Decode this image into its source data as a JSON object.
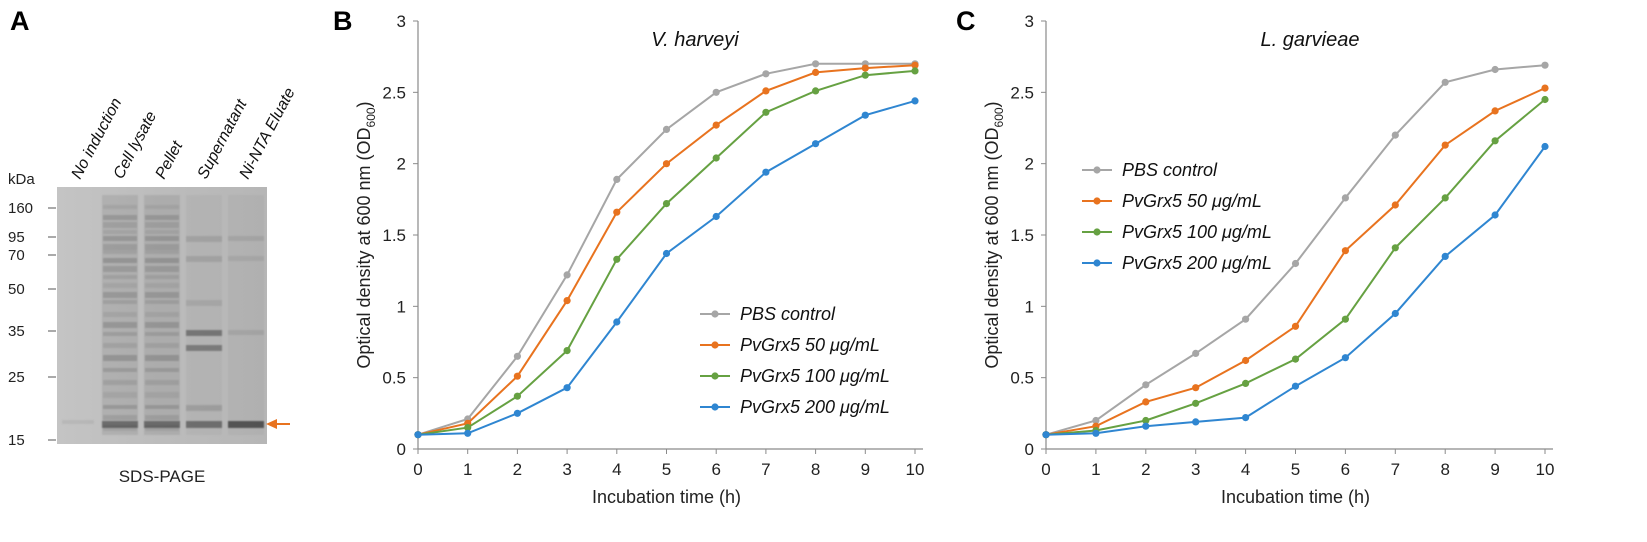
{
  "panel_a": {
    "letter": "A",
    "lanes": [
      "No induction",
      "Cell lysate",
      "Pellet",
      "Supernatant",
      "Ni-NTA Eluate"
    ],
    "unit_label": "kDa",
    "markers": [
      "160",
      "95",
      "70",
      "50",
      "35",
      "25",
      "15"
    ],
    "caption": "SDS-PAGE",
    "arrow_color": "#e8731f"
  },
  "chart_data": [
    {
      "panel": "B",
      "type": "line",
      "title": "V. harveyi",
      "xlabel": "Incubation time (h)",
      "ylabel_prefix": "Optical density at 600 nm (OD",
      "ylabel_sub": "600",
      "ylabel_suffix": ")",
      "x": [
        0,
        1,
        2,
        3,
        4,
        5,
        6,
        7,
        8,
        9,
        10
      ],
      "xlim": [
        0,
        10
      ],
      "ylim": [
        0,
        3
      ],
      "x_ticks": [
        "0",
        "1",
        "2",
        "3",
        "4",
        "5",
        "6",
        "7",
        "8",
        "9",
        "10"
      ],
      "y_ticks": [
        "0",
        "0.5",
        "1",
        "1.5",
        "2",
        "2.5",
        "3"
      ],
      "grid": false,
      "legend_position": "bottom-right",
      "series": [
        {
          "name": "PBS control",
          "color": "#a6a6a6",
          "values": [
            0.1,
            0.21,
            0.65,
            1.22,
            1.89,
            2.24,
            2.5,
            2.63,
            2.7,
            2.7,
            2.7
          ]
        },
        {
          "name": "PvGrx5 50 μg/mL",
          "color": "#e8731f",
          "values": [
            0.1,
            0.18,
            0.51,
            1.04,
            1.66,
            2.0,
            2.27,
            2.51,
            2.64,
            2.67,
            2.69
          ]
        },
        {
          "name": "PvGrx5 100 μg/mL",
          "color": "#66a142",
          "values": [
            0.1,
            0.15,
            0.37,
            0.69,
            1.33,
            1.72,
            2.04,
            2.36,
            2.51,
            2.62,
            2.65
          ]
        },
        {
          "name": "PvGrx5 200 μg/mL",
          "color": "#2f86d1",
          "values": [
            0.1,
            0.11,
            0.25,
            0.43,
            0.89,
            1.37,
            1.63,
            1.94,
            2.14,
            2.34,
            2.44
          ]
        }
      ]
    },
    {
      "panel": "C",
      "type": "line",
      "title": "L. garvieae",
      "xlabel": "Incubation time (h)",
      "ylabel_prefix": "Optical density at 600 nm (OD",
      "ylabel_sub": "600",
      "ylabel_suffix": ")",
      "x": [
        0,
        1,
        2,
        3,
        4,
        5,
        6,
        7,
        8,
        9,
        10
      ],
      "xlim": [
        0,
        10
      ],
      "ylim": [
        0,
        3
      ],
      "x_ticks": [
        "0",
        "1",
        "2",
        "3",
        "4",
        "5",
        "6",
        "7",
        "8",
        "9",
        "10"
      ],
      "y_ticks": [
        "0",
        "0.5",
        "1",
        "1.5",
        "2",
        "2.5",
        "3"
      ],
      "grid": false,
      "legend_position": "top-left",
      "series": [
        {
          "name": "PBS control",
          "color": "#a6a6a6",
          "values": [
            0.1,
            0.2,
            0.45,
            0.67,
            0.91,
            1.3,
            1.76,
            2.2,
            2.57,
            2.66,
            2.69
          ]
        },
        {
          "name": "PvGrx5 50 μg/mL",
          "color": "#e8731f",
          "values": [
            0.1,
            0.16,
            0.33,
            0.43,
            0.62,
            0.86,
            1.39,
            1.71,
            2.13,
            2.37,
            2.53
          ]
        },
        {
          "name": "PvGrx5 100 μg/mL",
          "color": "#66a142",
          "values": [
            0.1,
            0.13,
            0.2,
            0.32,
            0.46,
            0.63,
            0.91,
            1.41,
            1.76,
            2.16,
            2.45
          ]
        },
        {
          "name": "PvGrx5 200 μg/mL",
          "color": "#2f86d1",
          "values": [
            0.1,
            0.11,
            0.16,
            0.19,
            0.22,
            0.44,
            0.64,
            0.95,
            1.35,
            1.64,
            2.12
          ]
        }
      ]
    }
  ]
}
